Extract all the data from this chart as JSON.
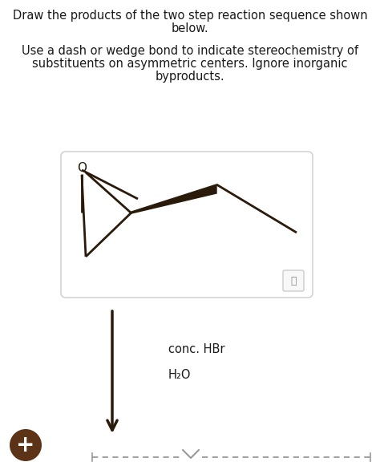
{
  "title_line1": "Draw the products of the two step reaction sequence shown",
  "title_line2": "below.",
  "subtitle_line1": "Use a dash or wedge bond to indicate stereochemistry of",
  "subtitle_line2": "substituents on asymmetric centers. Ignore inorganic",
  "subtitle_line3": "byproducts.",
  "reagent1": "conc. HBr",
  "reagent2": "H₂O",
  "bg_color": "#ffffff",
  "text_color": "#1a1a1a",
  "box_border": "#cccccc",
  "mol_color": "#2a1a0a",
  "plus_bg": "#5c3317",
  "plus_color": "#ffffff",
  "dash_color": "#999999",
  "zoom_border": "#cccccc",
  "zoom_bg": "#f8f8f8"
}
